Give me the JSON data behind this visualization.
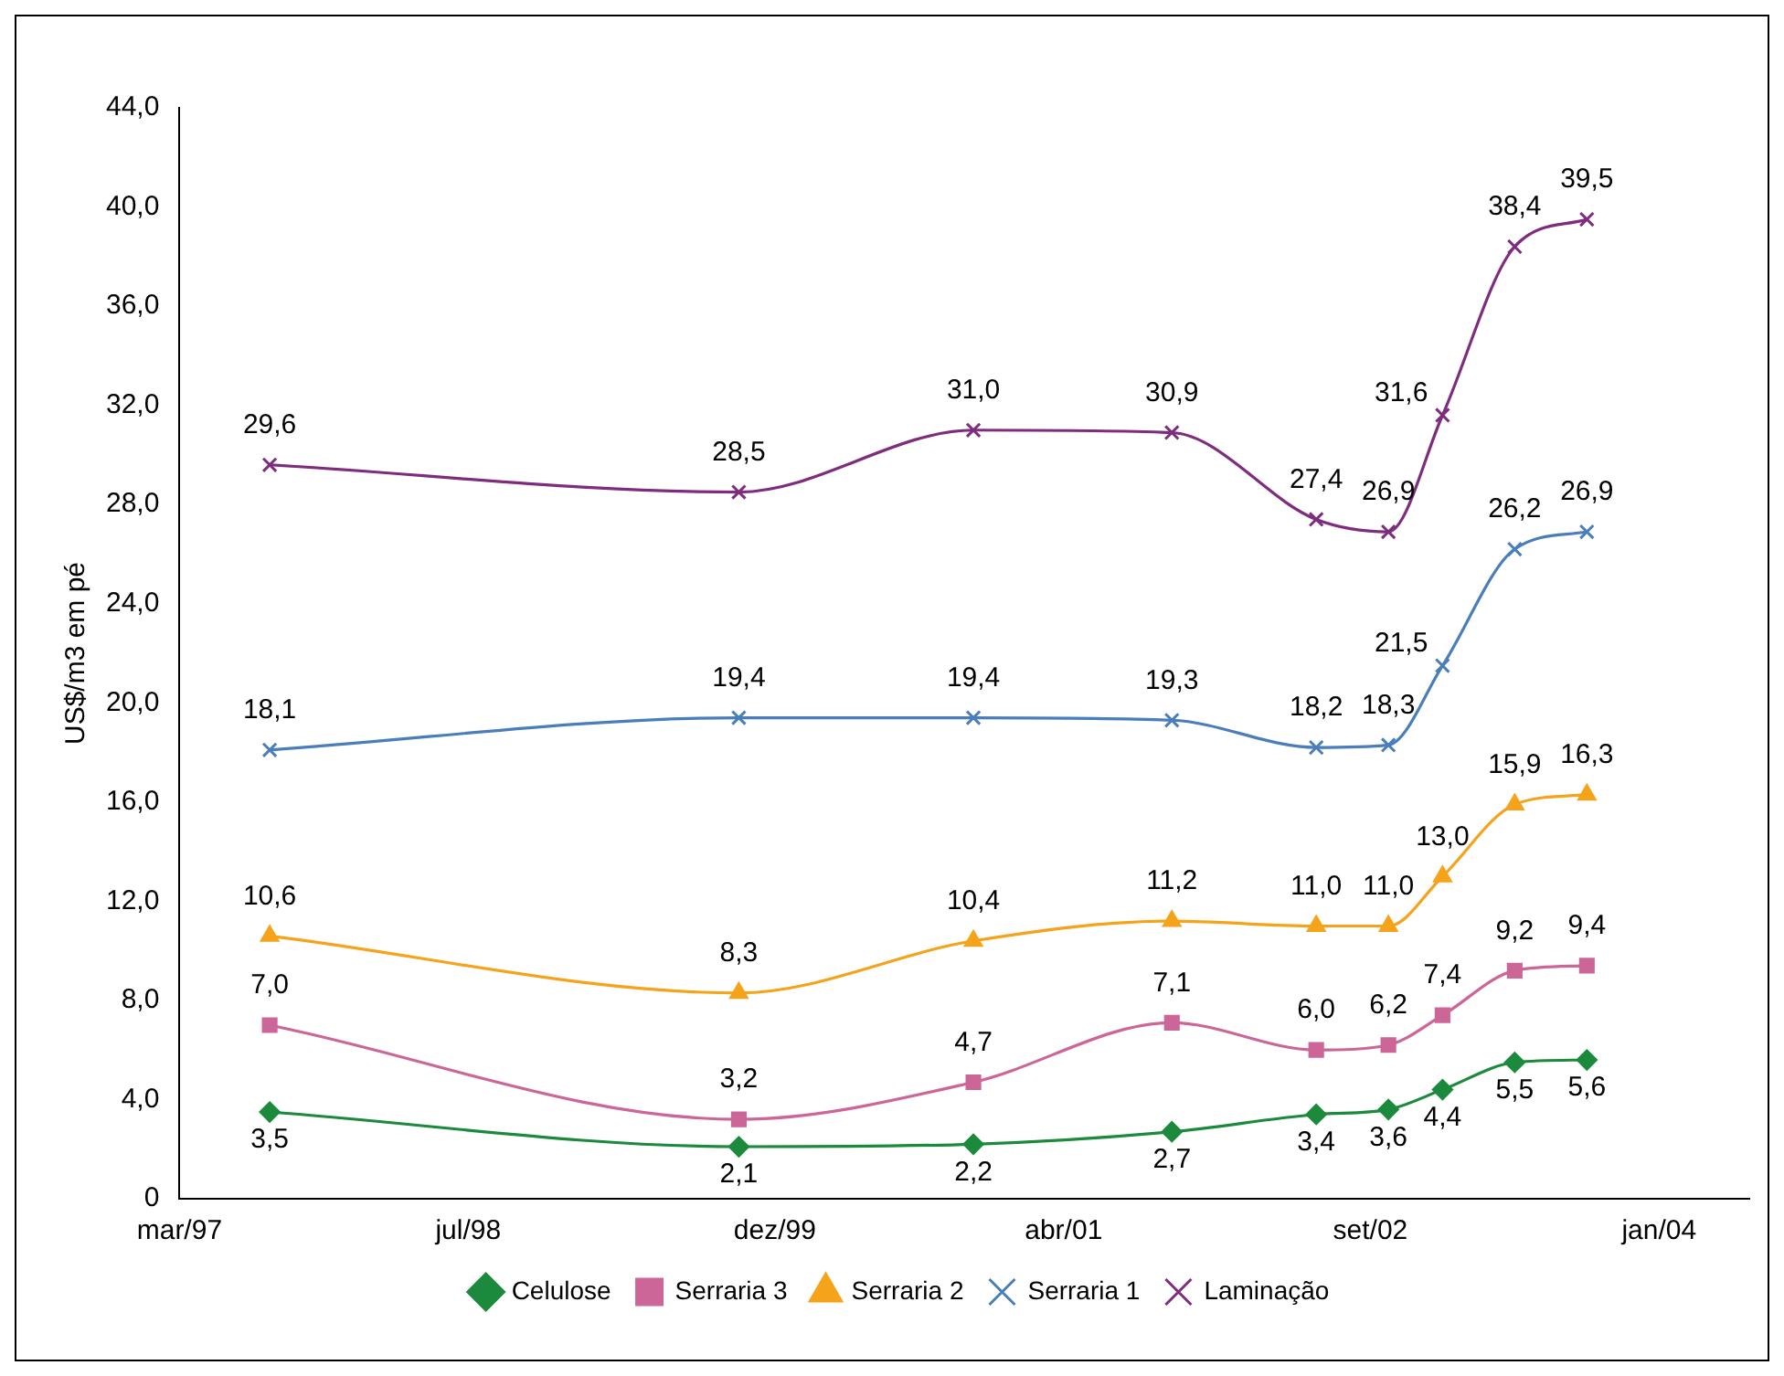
{
  "chart_data": {
    "type": "line",
    "ylabel": "US$/m3 em pé",
    "x": [
      "1997-08",
      "1999-10",
      "2000-11",
      "2001-10",
      "2002-06",
      "2002-10",
      "2003-01",
      "2003-05",
      "2003-09"
    ],
    "xlim": [
      "1997-03",
      "2004-06"
    ],
    "xticks": [
      {
        "value": "1997-03",
        "label": "mar/97"
      },
      {
        "value": "1998-07",
        "label": "jul/98"
      },
      {
        "value": "1999-12",
        "label": "dez/99"
      },
      {
        "value": "2001-04",
        "label": "abr/01"
      },
      {
        "value": "2002-09",
        "label": "set/02"
      },
      {
        "value": "2004-01",
        "label": "jan/04"
      }
    ],
    "ylim": [
      0,
      44
    ],
    "yticks": [
      0,
      {
        "value": 4,
        "label": "4,0"
      },
      {
        "value": 8,
        "label": "8,0"
      },
      {
        "value": 12,
        "label": "12,0"
      },
      {
        "value": 16,
        "label": "16,0"
      },
      {
        "value": 20,
        "label": "20,0"
      },
      {
        "value": 24,
        "label": "24,0"
      },
      {
        "value": 28,
        "label": "28,0"
      },
      {
        "value": 32,
        "label": "32,0"
      },
      {
        "value": 36,
        "label": "36,0"
      },
      {
        "value": 40,
        "label": "40,0"
      },
      {
        "value": 44,
        "label": "44,0"
      }
    ],
    "series": [
      {
        "name": "Celulose",
        "color": "#1b8a3c",
        "marker": "diamond",
        "values": [
          3.5,
          2.1,
          2.2,
          2.7,
          3.4,
          3.6,
          4.4,
          5.5,
          5.6
        ],
        "value_labels": [
          "3,5",
          "2,1",
          "2,2",
          "2,7",
          "3,4",
          "3,6",
          "4,4",
          "5,5",
          "5,6"
        ]
      },
      {
        "name": "Serraria 3",
        "color": "#cc6699",
        "marker": "square",
        "values": [
          7.0,
          3.2,
          4.7,
          7.1,
          6.0,
          6.2,
          7.4,
          9.2,
          9.4
        ],
        "value_labels": [
          "7,0",
          "3,2",
          "4,7",
          "7,1",
          "6,0",
          "6,2",
          "7,4",
          "9,2",
          "9,4"
        ]
      },
      {
        "name": "Serraria 2",
        "color": "#f5a31a",
        "marker": "triangle",
        "values": [
          10.6,
          8.3,
          10.4,
          11.2,
          11.0,
          11.0,
          13.0,
          15.9,
          16.3
        ],
        "value_labels": [
          "10,6",
          "8,3",
          "10,4",
          "11,2",
          "11,0",
          "11,0",
          "13,0",
          "15,9",
          "16,3"
        ]
      },
      {
        "name": "Serraria 1",
        "color": "#4a7ebb",
        "marker": "cross",
        "values": [
          18.1,
          19.4,
          19.4,
          19.3,
          18.2,
          18.3,
          21.5,
          26.2,
          26.9
        ],
        "value_labels": [
          "18,1",
          "19,4",
          "19,4",
          "19,3",
          "18,2",
          "18,3",
          "21,5",
          "26,2",
          "26,9"
        ]
      },
      {
        "name": "Laminação",
        "color": "#7e2d7e",
        "marker": "cross",
        "values": [
          29.6,
          28.5,
          31.0,
          30.9,
          27.4,
          26.9,
          31.6,
          38.4,
          39.5
        ],
        "value_labels": [
          "29,6",
          "28,5",
          "31,0",
          "30,9",
          "27,4",
          "26,9",
          "31,6",
          "38,4",
          "39,5"
        ]
      }
    ],
    "grid": false,
    "legend": "bottom"
  }
}
